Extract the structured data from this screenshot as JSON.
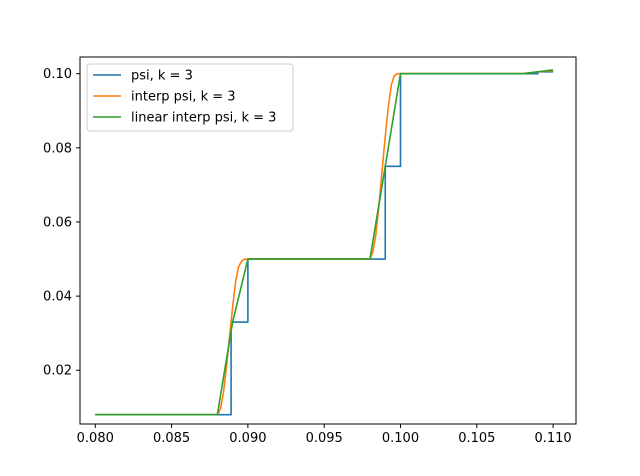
{
  "chart_data": {
    "type": "line",
    "title": "",
    "xlabel": "",
    "ylabel": "",
    "xlim": [
      0.079,
      0.1115
    ],
    "ylim": [
      0.0055,
      0.1045
    ],
    "x_ticks": [
      0.08,
      0.085,
      0.09,
      0.095,
      0.1,
      0.105,
      0.11
    ],
    "x_tick_labels": [
      "0.080",
      "0.085",
      "0.090",
      "0.095",
      "0.100",
      "0.105",
      "0.110"
    ],
    "y_ticks": [
      0.02,
      0.04,
      0.06,
      0.08,
      0.1
    ],
    "y_tick_labels": [
      "0.02",
      "0.04",
      "0.06",
      "0.08",
      "0.10"
    ],
    "grid": false,
    "legend_position": "top-left",
    "series": [
      {
        "name": "psi, k = 3",
        "color": "#1f77b4",
        "x": [
          0.08,
          0.0889,
          0.0889,
          0.0894,
          0.0894,
          0.09,
          0.09,
          0.099,
          0.099,
          0.1,
          0.1,
          0.109,
          0.109,
          0.11
        ],
        "y": [
          0.008,
          0.008,
          0.033,
          0.033,
          0.033,
          0.033,
          0.05,
          0.05,
          0.075,
          0.075,
          0.1,
          0.1,
          0.1005,
          0.1005
        ]
      },
      {
        "name": "interp psi, k = 3",
        "color": "#ff7f0e",
        "x": [
          0.08,
          0.088,
          0.0882,
          0.0884,
          0.0886,
          0.0888,
          0.089,
          0.0892,
          0.0894,
          0.0896,
          0.0898,
          0.09,
          0.098,
          0.0982,
          0.0984,
          0.0986,
          0.0988,
          0.099,
          0.0992,
          0.0994,
          0.0996,
          0.0998,
          0.1,
          0.108,
          0.109,
          0.11
        ],
        "y": [
          0.008,
          0.008,
          0.0095,
          0.014,
          0.021,
          0.029,
          0.037,
          0.044,
          0.048,
          0.0495,
          0.05,
          0.05,
          0.05,
          0.052,
          0.057,
          0.065,
          0.074,
          0.083,
          0.091,
          0.097,
          0.0995,
          0.1,
          0.1,
          0.1,
          0.1005,
          0.1008
        ]
      },
      {
        "name": "linear interp psi, k = 3",
        "color": "#2ca02c",
        "x": [
          0.08,
          0.088,
          0.089,
          0.09,
          0.098,
          0.099,
          0.1,
          0.108,
          0.109,
          0.11
        ],
        "y": [
          0.008,
          0.008,
          0.033,
          0.05,
          0.05,
          0.075,
          0.1,
          0.1,
          0.1005,
          0.101
        ]
      }
    ]
  }
}
